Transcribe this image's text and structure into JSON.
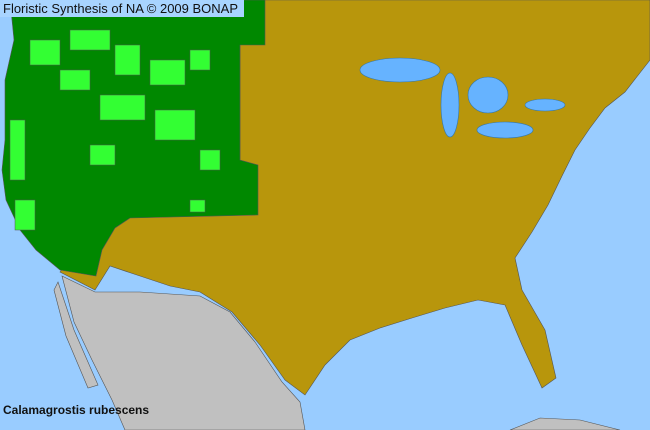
{
  "map": {
    "title": "Floristic Synthesis of NA © 2009 BONAP",
    "species": "Calamagrostis rubescens",
    "colors": {
      "water": "#99ccff",
      "county_present": "#008800",
      "county_native_present": "#33ff33",
      "state_present_absent_county": "#b8960c",
      "outside_area": "#c0c0c0"
    }
  }
}
